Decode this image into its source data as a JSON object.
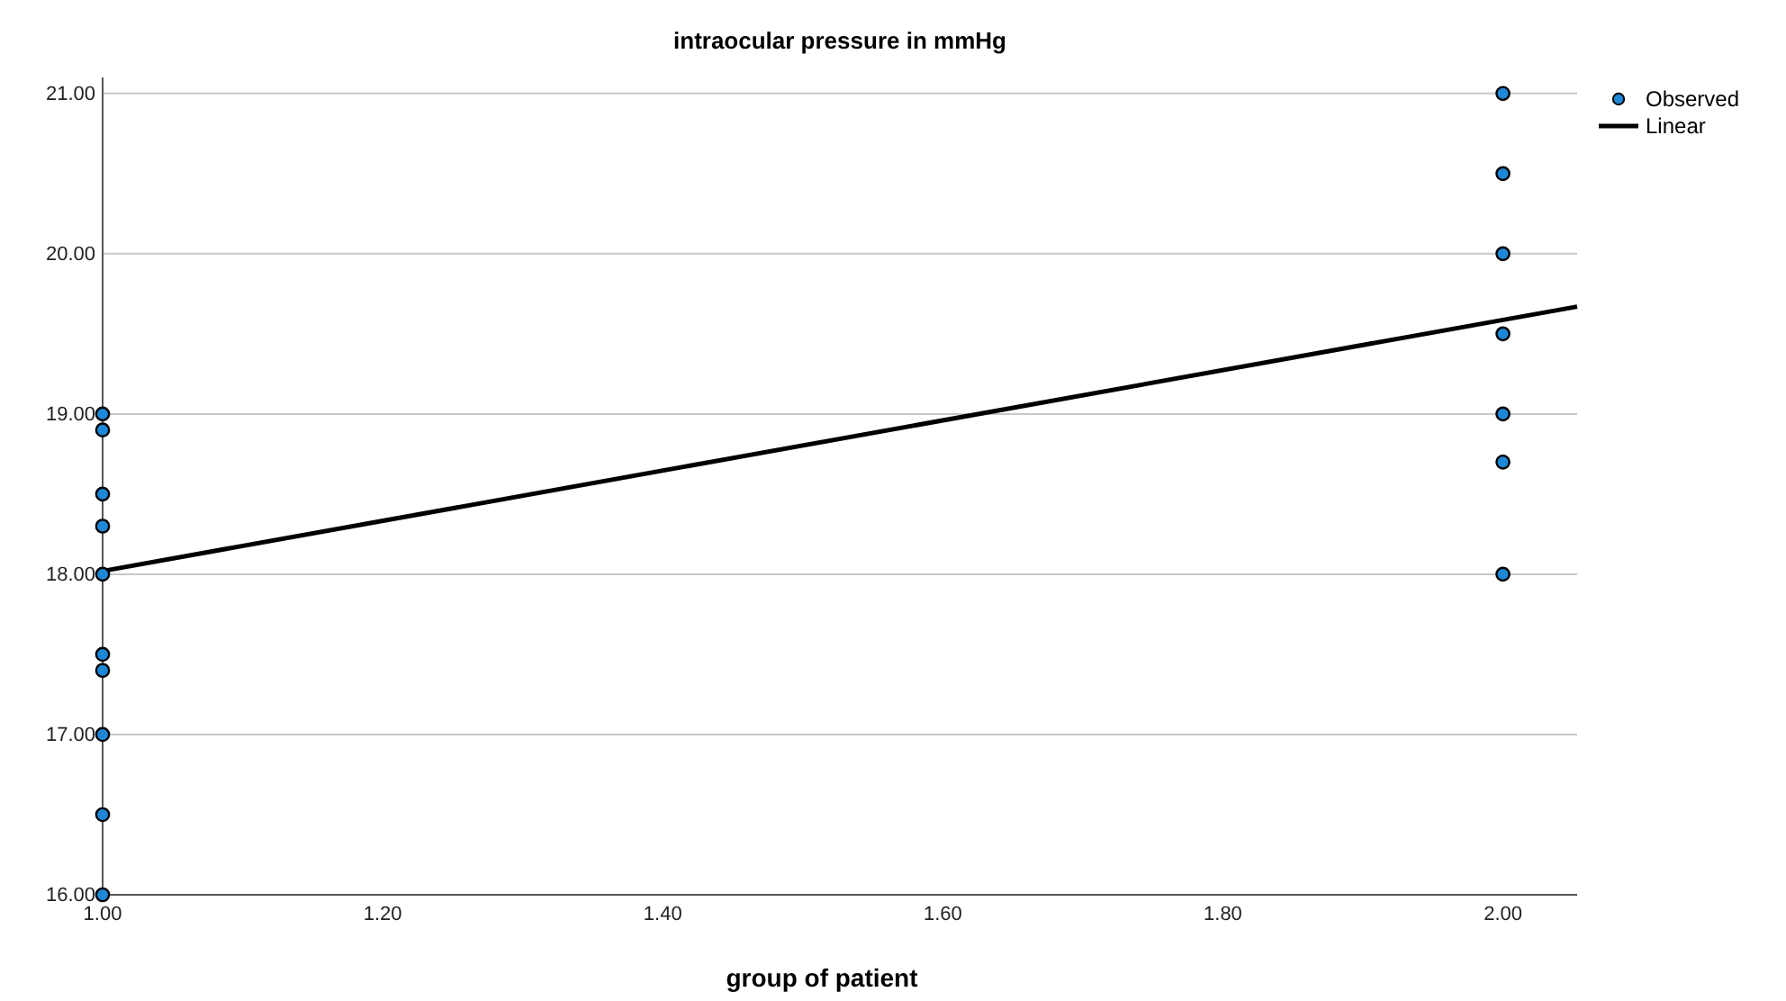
{
  "chart_data": {
    "type": "scatter",
    "title": "intraocular pressure in mmHg",
    "xlabel": "group of patient",
    "xlim": [
      1,
      2.053
    ],
    "ylim": [
      16,
      21.1
    ],
    "xticks": [
      {
        "value": 1,
        "label": "1.00"
      },
      {
        "value": 1.2,
        "label": "1.20"
      },
      {
        "value": 1.4,
        "label": "1.40"
      },
      {
        "value": 1.6,
        "label": "1.60"
      },
      {
        "value": 1.8,
        "label": "1.80"
      },
      {
        "value": 2,
        "label": "2.00"
      }
    ],
    "yticks": [
      {
        "value": 16,
        "label": "16.00"
      },
      {
        "value": 17,
        "label": "17.00"
      },
      {
        "value": 18,
        "label": "18.00"
      },
      {
        "value": 19,
        "label": "19.00"
      },
      {
        "value": 20,
        "label": "20.00"
      },
      {
        "value": 21,
        "label": "21.00"
      }
    ],
    "grid": "y",
    "legend": "top right",
    "series": [
      {
        "name": "Observed",
        "marker": "circle",
        "color": "#1e88d8",
        "x": [
          1,
          1,
          1,
          1,
          1,
          1,
          1,
          1,
          1,
          1,
          2,
          2,
          2,
          2,
          2,
          2,
          2
        ],
        "values": [
          19.0,
          18.9,
          18.5,
          18.3,
          18.0,
          17.5,
          17.4,
          17.0,
          16.5,
          16.0,
          21.0,
          20.5,
          20.0,
          19.5,
          19.0,
          18.7,
          18.0
        ]
      },
      {
        "name": "Linear",
        "type": "line",
        "color": "#000000",
        "line_style": "solid",
        "x": [
          1,
          2.053
        ],
        "values": [
          18.02,
          19.67
        ]
      }
    ]
  }
}
